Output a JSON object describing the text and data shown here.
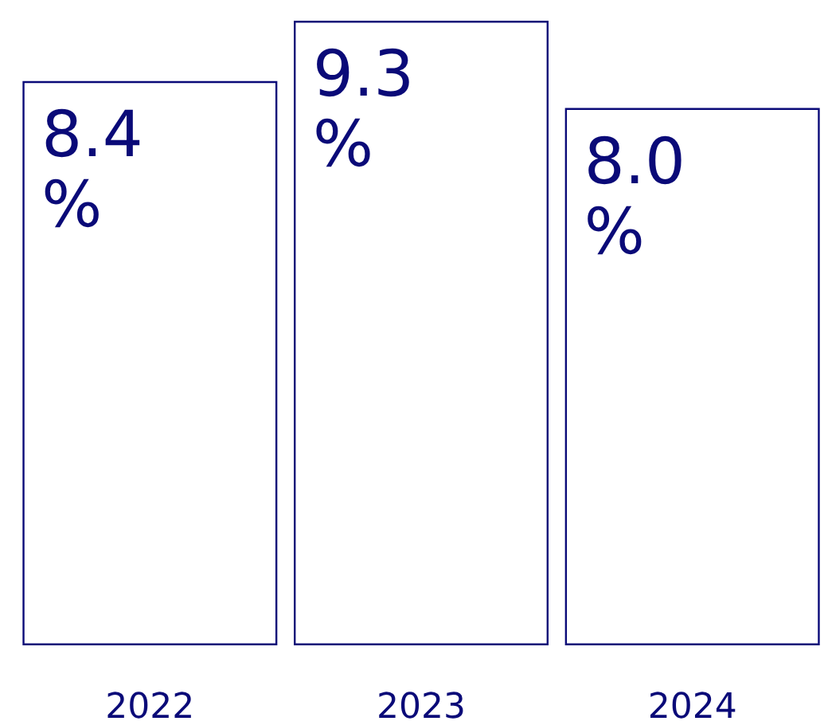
{
  "chart_data": {
    "type": "bar",
    "categories": [
      "2022",
      "2023",
      "2024"
    ],
    "series": [
      {
        "color": "#0a0a78",
        "values": [
          8.4,
          9.3,
          8.0
        ],
        "value_labels": [
          "8.4 %",
          "9.3 %",
          "8.0 %"
        ]
      }
    ],
    "grid": false
  }
}
